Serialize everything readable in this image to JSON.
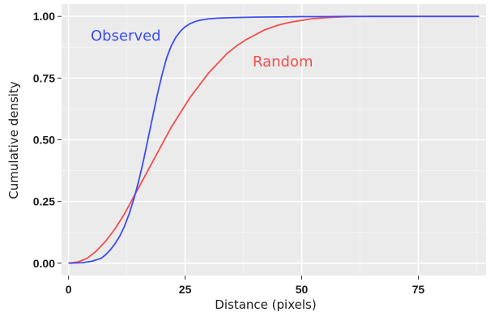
{
  "chart_data": {
    "type": "line",
    "title": "",
    "xlabel": "Distance (pixels)",
    "ylabel": "Cumulative density",
    "xlim": [
      -1.5,
      89.5
    ],
    "ylim": [
      -0.05,
      1.05
    ],
    "x_ticks": [
      0,
      25,
      50,
      75
    ],
    "x_tick_labels": [
      "0",
      "25",
      "50",
      "75"
    ],
    "y_ticks": [
      0,
      0.25,
      0.5,
      0.75,
      1.0
    ],
    "y_tick_labels": [
      "0.00",
      "0.25",
      "0.50",
      "0.75",
      "1.00"
    ],
    "grid": true,
    "legend": "none (series labeled directly on plot)",
    "background": "#ebebeb",
    "series": [
      {
        "name": "Observed",
        "color": "#3b4cf2",
        "x": [
          0,
          3,
          5,
          7,
          8,
          9,
          10,
          11,
          12,
          13,
          14,
          15,
          16,
          17,
          18,
          19,
          20,
          21,
          22,
          23,
          24,
          25,
          26,
          27,
          28,
          30,
          32,
          35,
          40,
          45,
          50,
          55,
          60,
          70,
          80,
          88
        ],
        "y": [
          0,
          0.002,
          0.008,
          0.02,
          0.035,
          0.055,
          0.08,
          0.11,
          0.15,
          0.2,
          0.26,
          0.33,
          0.41,
          0.5,
          0.59,
          0.68,
          0.76,
          0.83,
          0.88,
          0.915,
          0.94,
          0.958,
          0.97,
          0.978,
          0.984,
          0.99,
          0.993,
          0.995,
          0.997,
          0.998,
          0.999,
          0.999,
          1.0,
          1.0,
          1.0,
          1.0
        ]
      },
      {
        "name": "Random",
        "color": "#f24d4d",
        "x": [
          0,
          2,
          4,
          6,
          8,
          10,
          12,
          14,
          16,
          18,
          20,
          22,
          24,
          26,
          28,
          30,
          32,
          34,
          36,
          38,
          40,
          42,
          45,
          48,
          52,
          56,
          60,
          65,
          70,
          80,
          88
        ],
        "y": [
          0,
          0.005,
          0.02,
          0.05,
          0.09,
          0.14,
          0.2,
          0.27,
          0.34,
          0.41,
          0.48,
          0.55,
          0.61,
          0.67,
          0.72,
          0.77,
          0.81,
          0.85,
          0.88,
          0.905,
          0.925,
          0.945,
          0.965,
          0.978,
          0.99,
          0.996,
          0.999,
          1.0,
          1.0,
          1.0,
          1.0
        ]
      }
    ],
    "annotations": [
      {
        "text": "Observed",
        "color": "#3b4cf2"
      },
      {
        "text": "Random",
        "color": "#f24d4d"
      }
    ]
  }
}
